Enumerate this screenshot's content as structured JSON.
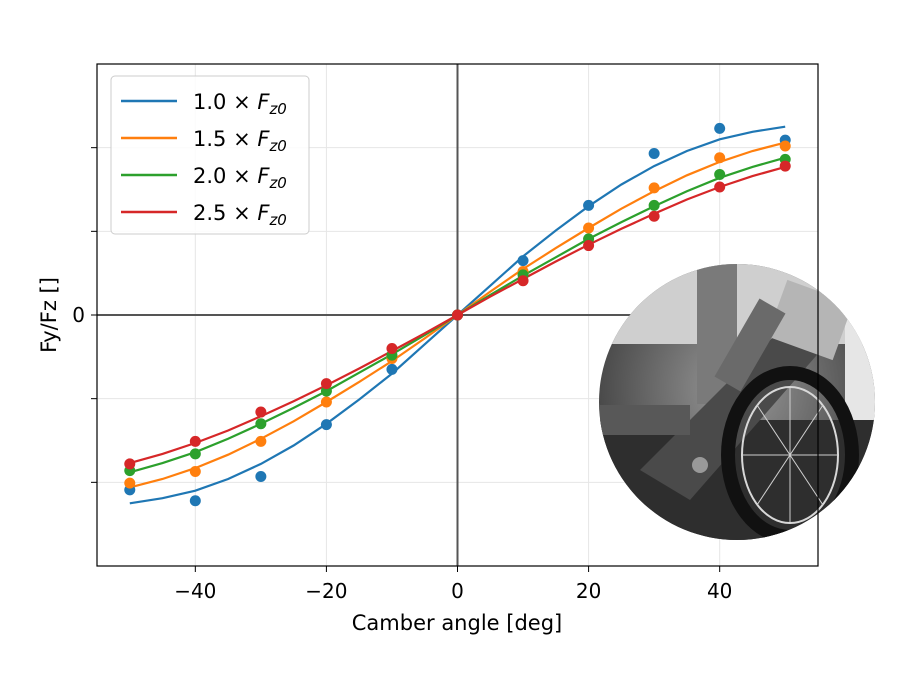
{
  "chart_data": {
    "type": "line",
    "xlabel": "Camber angle [deg]",
    "ylabel": "Fy/Fz []",
    "xlim": [
      -55,
      55
    ],
    "ylim": [
      -0.3,
      0.3
    ],
    "xticks": [
      -40,
      -20,
      0,
      20,
      40
    ],
    "xtick_labels": [
      "−40",
      "−20",
      "0",
      "20",
      "40"
    ],
    "yticks": [
      -0.2,
      -0.1,
      0,
      0.1,
      0.2
    ],
    "ytick_labels": [
      "",
      "",
      "0",
      "",
      ""
    ],
    "grid": true,
    "legend_position": "top-left",
    "inset_photo": "bicycle wheel on a camber test rig (grayscale photo)",
    "series": [
      {
        "name_prefix": "1.0 × ",
        "name_symbol": "F",
        "name_sub": "z0",
        "color": "#1f77b4",
        "points_x": [
          -50,
          -40,
          -30,
          -20,
          -10,
          0,
          10,
          20,
          30,
          40,
          50
        ],
        "points_y": [
          -0.209,
          -0.222,
          -0.193,
          -0.131,
          -0.065,
          0,
          0.065,
          0.131,
          0.193,
          0.223,
          0.209
        ],
        "curve_x": [
          -50,
          -45,
          -40,
          -35,
          -30,
          -25,
          -20,
          -15,
          -10,
          -5,
          0,
          5,
          10,
          15,
          20,
          25,
          30,
          35,
          40,
          45,
          50
        ],
        "curve_y": [
          -0.225,
          -0.219,
          -0.21,
          -0.196,
          -0.178,
          -0.156,
          -0.13,
          -0.101,
          -0.07,
          -0.035,
          0,
          0.035,
          0.07,
          0.101,
          0.13,
          0.156,
          0.178,
          0.196,
          0.21,
          0.219,
          0.225
        ]
      },
      {
        "name_prefix": "1.5 × ",
        "name_symbol": "F",
        "name_sub": "z0",
        "color": "#ff7f0e",
        "points_x": [
          -50,
          -40,
          -30,
          -20,
          -10,
          0,
          10,
          20,
          30,
          40,
          50
        ],
        "points_y": [
          -0.201,
          -0.187,
          -0.151,
          -0.104,
          -0.052,
          0,
          0.052,
          0.104,
          0.152,
          0.188,
          0.202
        ],
        "curve_x": [
          -50,
          -45,
          -40,
          -35,
          -30,
          -25,
          -20,
          -15,
          -10,
          -5,
          0,
          5,
          10,
          15,
          20,
          25,
          30,
          35,
          40,
          45,
          50
        ],
        "curve_y": [
          -0.206,
          -0.196,
          -0.183,
          -0.167,
          -0.148,
          -0.127,
          -0.104,
          -0.08,
          -0.055,
          -0.028,
          0,
          0.028,
          0.055,
          0.08,
          0.104,
          0.127,
          0.148,
          0.167,
          0.183,
          0.196,
          0.206
        ]
      },
      {
        "name_prefix": "2.0 × ",
        "name_symbol": "F",
        "name_sub": "z0",
        "color": "#2ca02c",
        "points_x": [
          -50,
          -40,
          -30,
          -20,
          -10,
          0,
          10,
          20,
          30,
          40,
          50
        ],
        "points_y": [
          -0.186,
          -0.166,
          -0.13,
          -0.091,
          -0.048,
          0,
          0.048,
          0.091,
          0.131,
          0.168,
          0.186
        ],
        "curve_x": [
          -50,
          -45,
          -40,
          -35,
          -30,
          -25,
          -20,
          -15,
          -10,
          -5,
          0,
          5,
          10,
          15,
          20,
          25,
          30,
          35,
          40,
          45,
          50
        ],
        "curve_y": [
          -0.188,
          -0.177,
          -0.164,
          -0.148,
          -0.13,
          -0.111,
          -0.091,
          -0.069,
          -0.047,
          -0.024,
          0,
          0.024,
          0.047,
          0.069,
          0.091,
          0.111,
          0.13,
          0.148,
          0.164,
          0.177,
          0.188
        ]
      },
      {
        "name_prefix": "2.5 × ",
        "name_symbol": "F",
        "name_sub": "z0",
        "color": "#d62728",
        "points_x": [
          -50,
          -40,
          -30,
          -20,
          -10,
          0,
          10,
          20,
          30,
          40,
          50
        ],
        "points_y": [
          -0.178,
          -0.151,
          -0.116,
          -0.082,
          -0.04,
          0,
          0.041,
          0.083,
          0.118,
          0.153,
          0.178
        ],
        "curve_x": [
          -50,
          -45,
          -40,
          -35,
          -30,
          -25,
          -20,
          -15,
          -10,
          -5,
          0,
          5,
          10,
          15,
          20,
          25,
          30,
          35,
          40,
          45,
          50
        ],
        "curve_y": [
          -0.177,
          -0.166,
          -0.153,
          -0.138,
          -0.121,
          -0.103,
          -0.084,
          -0.064,
          -0.043,
          -0.022,
          0,
          0.022,
          0.043,
          0.064,
          0.084,
          0.103,
          0.121,
          0.138,
          0.153,
          0.166,
          0.177
        ]
      }
    ]
  }
}
